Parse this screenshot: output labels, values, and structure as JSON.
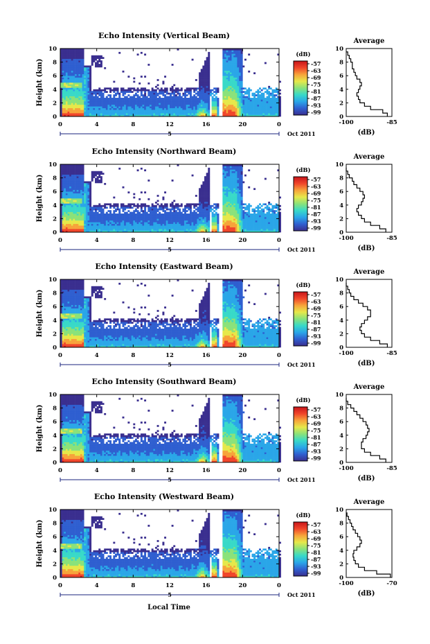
{
  "figure": {
    "date_label": "Oct 2011",
    "xlabel_bottom": "Local Time",
    "colorbar_unit": "(dB)",
    "colorbar_ticks": [
      "-57",
      "-63",
      "-69",
      "-75",
      "-81",
      "-87",
      "-93",
      "-99"
    ],
    "colormap": [
      "#3a2f8f",
      "#2f5fd0",
      "#2aa6e8",
      "#38d9c8",
      "#8ae27a",
      "#e6e84a",
      "#f7a33a",
      "#f0452a",
      "#c8141a"
    ],
    "day_marker": "5"
  },
  "chart_data": [
    {
      "type": "heatmap",
      "title": "Echo Intensity (Vertical Beam)",
      "ylabel": "Height (km)",
      "xlim": [
        0,
        24
      ],
      "ylim": [
        0,
        10
      ],
      "xticks": [
        "0",
        "4",
        "8",
        "12",
        "16",
        "20",
        "0"
      ],
      "yticks": [
        "0",
        "2",
        "4",
        "6",
        "8",
        "10"
      ],
      "profile": {
        "title": "Average",
        "xlabel": "(dB)",
        "xlim": [
          -100,
          -85
        ],
        "xtick_labels": [
          "-100",
          "-85"
        ],
        "heights": [
          0,
          0.5,
          1,
          1.5,
          2,
          2.5,
          3,
          3.5,
          4,
          4.5,
          5,
          5.5,
          6,
          6.5,
          7,
          7.5,
          8,
          8.5,
          9,
          9.5
        ],
        "values": [
          -86.5,
          -88,
          -92,
          -94,
          -95.5,
          -96,
          -96.5,
          -96,
          -95.5,
          -95,
          -95.5,
          -96.5,
          -97,
          -97.5,
          -98,
          -98,
          -98.5,
          -99,
          -99.5,
          -100
        ]
      }
    },
    {
      "type": "heatmap",
      "title": "Echo Intensity (Northward Beam)",
      "ylabel": "Height (km)",
      "xlim": [
        0,
        24
      ],
      "ylim": [
        0,
        10
      ],
      "xticks": [
        "0",
        "4",
        "8",
        "12",
        "16",
        "20",
        "0"
      ],
      "yticks": [
        "0",
        "2",
        "4",
        "6",
        "8",
        "10"
      ],
      "profile": {
        "title": "Average",
        "xlabel": "(dB)",
        "xlim": [
          -100,
          -85
        ],
        "xtick_labels": [
          "-100",
          "-85"
        ],
        "heights": [
          0,
          0.5,
          1,
          1.5,
          2,
          2.5,
          3,
          3.5,
          4,
          4.5,
          5,
          5.5,
          6,
          6.5,
          7,
          7.5,
          8,
          8.5,
          9,
          9.5
        ],
        "values": [
          -87,
          -89,
          -92,
          -94,
          -95,
          -96,
          -96.5,
          -96,
          -95,
          -94.5,
          -94,
          -94.5,
          -95.5,
          -96.5,
          -97.5,
          -98,
          -99,
          -99.5,
          -100,
          -100
        ]
      }
    },
    {
      "type": "heatmap",
      "title": "Echo Intensity (Eastward Beam)",
      "ylabel": "Height (km)",
      "xlim": [
        0,
        24
      ],
      "ylim": [
        0,
        10
      ],
      "xticks": [
        "0",
        "4",
        "8",
        "12",
        "16",
        "20",
        "0"
      ],
      "yticks": [
        "0",
        "2",
        "4",
        "6",
        "8",
        "10"
      ],
      "profile": {
        "title": "Average",
        "xlabel": "(dB)",
        "xlim": [
          -100,
          -85
        ],
        "xtick_labels": [
          "-100",
          "-85"
        ],
        "heights": [
          0,
          0.5,
          1,
          1.5,
          2,
          2.5,
          3,
          3.5,
          4,
          4.5,
          5,
          5.5,
          6,
          6.5,
          7,
          7.5,
          8,
          8.5,
          9,
          9.5
        ],
        "values": [
          -86.5,
          -89,
          -92,
          -94,
          -95,
          -95.5,
          -95,
          -94,
          -93,
          -92,
          -92,
          -93,
          -94.5,
          -96,
          -97.5,
          -98.5,
          -99,
          -99.5,
          -100,
          -100
        ]
      }
    },
    {
      "type": "heatmap",
      "title": "Echo Intensity (Southward Beam)",
      "ylabel": "Height (km)",
      "xlim": [
        0,
        24
      ],
      "ylim": [
        0,
        10
      ],
      "xticks": [
        "0",
        "4",
        "8",
        "12",
        "16",
        "20",
        "0"
      ],
      "yticks": [
        "0",
        "2",
        "4",
        "6",
        "8",
        "10"
      ],
      "profile": {
        "title": "Average",
        "xlabel": "(dB)",
        "xlim": [
          -100,
          -85
        ],
        "xtick_labels": [
          "-100",
          "-85"
        ],
        "heights": [
          0,
          0.5,
          1,
          1.5,
          2,
          2.5,
          3,
          3.5,
          4,
          4.5,
          5,
          5.5,
          6,
          6.5,
          7,
          7.5,
          8,
          8.5,
          9,
          9.5
        ],
        "values": [
          -87,
          -89,
          -92,
          -94,
          -95,
          -95,
          -94.5,
          -93.5,
          -93,
          -92.5,
          -93,
          -93.5,
          -94.5,
          -95.5,
          -96.5,
          -97.5,
          -98.5,
          -99.5,
          -100,
          -100
        ]
      }
    },
    {
      "type": "heatmap",
      "title": "Echo Intensity (Westward Beam)",
      "ylabel": "Height (km)",
      "xlim": [
        0,
        24
      ],
      "ylim": [
        0,
        10
      ],
      "xticks": [
        "0",
        "4",
        "8",
        "12",
        "16",
        "20",
        "0"
      ],
      "yticks": [
        "0",
        "2",
        "4",
        "6",
        "8",
        "10"
      ],
      "profile": {
        "title": "Average",
        "xlabel": "(dB)",
        "xlim": [
          -100,
          -70
        ],
        "xtick_labels": [
          "-100",
          "-70"
        ],
        "heights": [
          0,
          0.5,
          1,
          1.5,
          2,
          2.5,
          3,
          3.5,
          4,
          4.5,
          5,
          5.5,
          6,
          6.5,
          7,
          7.5,
          8,
          8.5,
          9,
          9.5
        ],
        "values": [
          -71,
          -80,
          -88,
          -92,
          -94,
          -95,
          -95.5,
          -95,
          -93,
          -91,
          -90,
          -91,
          -92.5,
          -94,
          -95.5,
          -96.5,
          -97.5,
          -98.5,
          -99.5,
          -100
        ]
      }
    }
  ]
}
